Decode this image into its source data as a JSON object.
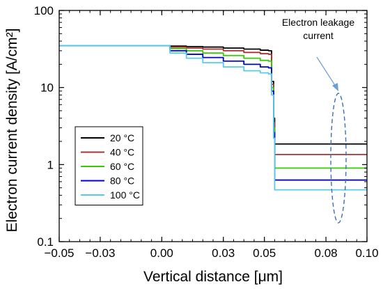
{
  "chart_data": {
    "type": "line",
    "xlabel": "Vertical distance [μm]",
    "ylabel": "Electron current density [A/cm²]",
    "xlim": [
      -0.05,
      0.1
    ],
    "ylim": [
      0.1,
      100
    ],
    "yscale": "log",
    "x_ticks": [
      -0.05,
      -0.03,
      0.0,
      0.03,
      0.05,
      0.08,
      0.1
    ],
    "x_tick_labels": [
      "−0.05",
      "−0.03",
      "0.00",
      "0.03",
      "0.05",
      "0.08",
      "0.10"
    ],
    "y_ticks": [
      0.1,
      1,
      10,
      100
    ],
    "y_tick_labels": [
      "0.1",
      "1",
      "10",
      "100"
    ],
    "grid": false,
    "legend_position": "lower-left",
    "annotation": "Electron leakage current",
    "annotation_lines": [
      "Electron leakage",
      "current"
    ],
    "series": [
      {
        "name": "20 °C",
        "color": "#000000",
        "x": [
          -0.05,
          0.0,
          0.004,
          0.012,
          0.02,
          0.03,
          0.04,
          0.048,
          0.052,
          0.0535,
          0.0545,
          0.055,
          0.1
        ],
        "y": [
          35,
          35,
          34.5,
          34,
          33.5,
          32.5,
          31.5,
          30.5,
          30,
          12,
          4,
          1.85,
          1.85
        ]
      },
      {
        "name": "40 °C",
        "color": "#b03030",
        "x": [
          -0.05,
          0.0,
          0.004,
          0.012,
          0.02,
          0.03,
          0.04,
          0.048,
          0.052,
          0.0535,
          0.0545,
          0.055,
          0.1
        ],
        "y": [
          35,
          35,
          33.5,
          32.5,
          31.5,
          30,
          28.5,
          27.5,
          27,
          11,
          3.5,
          1.35,
          1.35
        ]
      },
      {
        "name": "60 °C",
        "color": "#33cc00",
        "x": [
          -0.05,
          0.0,
          0.004,
          0.012,
          0.02,
          0.03,
          0.04,
          0.048,
          0.052,
          0.0535,
          0.0545,
          0.055,
          0.1
        ],
        "y": [
          35,
          35,
          32,
          30,
          28,
          26,
          24,
          22.5,
          22,
          10,
          3,
          0.9,
          0.9
        ]
      },
      {
        "name": "80 °C",
        "color": "#0000cc",
        "x": [
          -0.05,
          0.0,
          0.004,
          0.012,
          0.02,
          0.03,
          0.04,
          0.048,
          0.052,
          0.0535,
          0.0545,
          0.055,
          0.1
        ],
        "y": [
          35,
          35,
          30,
          27,
          24.5,
          22,
          20,
          18.5,
          18,
          9,
          2.6,
          0.63,
          0.63
        ]
      },
      {
        "name": "100 °C",
        "color": "#55ccee",
        "x": [
          -0.05,
          0.0,
          0.004,
          0.012,
          0.02,
          0.03,
          0.04,
          0.048,
          0.052,
          0.0535,
          0.0545,
          0.055,
          0.1
        ],
        "y": [
          35,
          35,
          28,
          24,
          21,
          18.5,
          16.5,
          15.5,
          15,
          8,
          2.2,
          0.47,
          0.47
        ]
      }
    ]
  }
}
